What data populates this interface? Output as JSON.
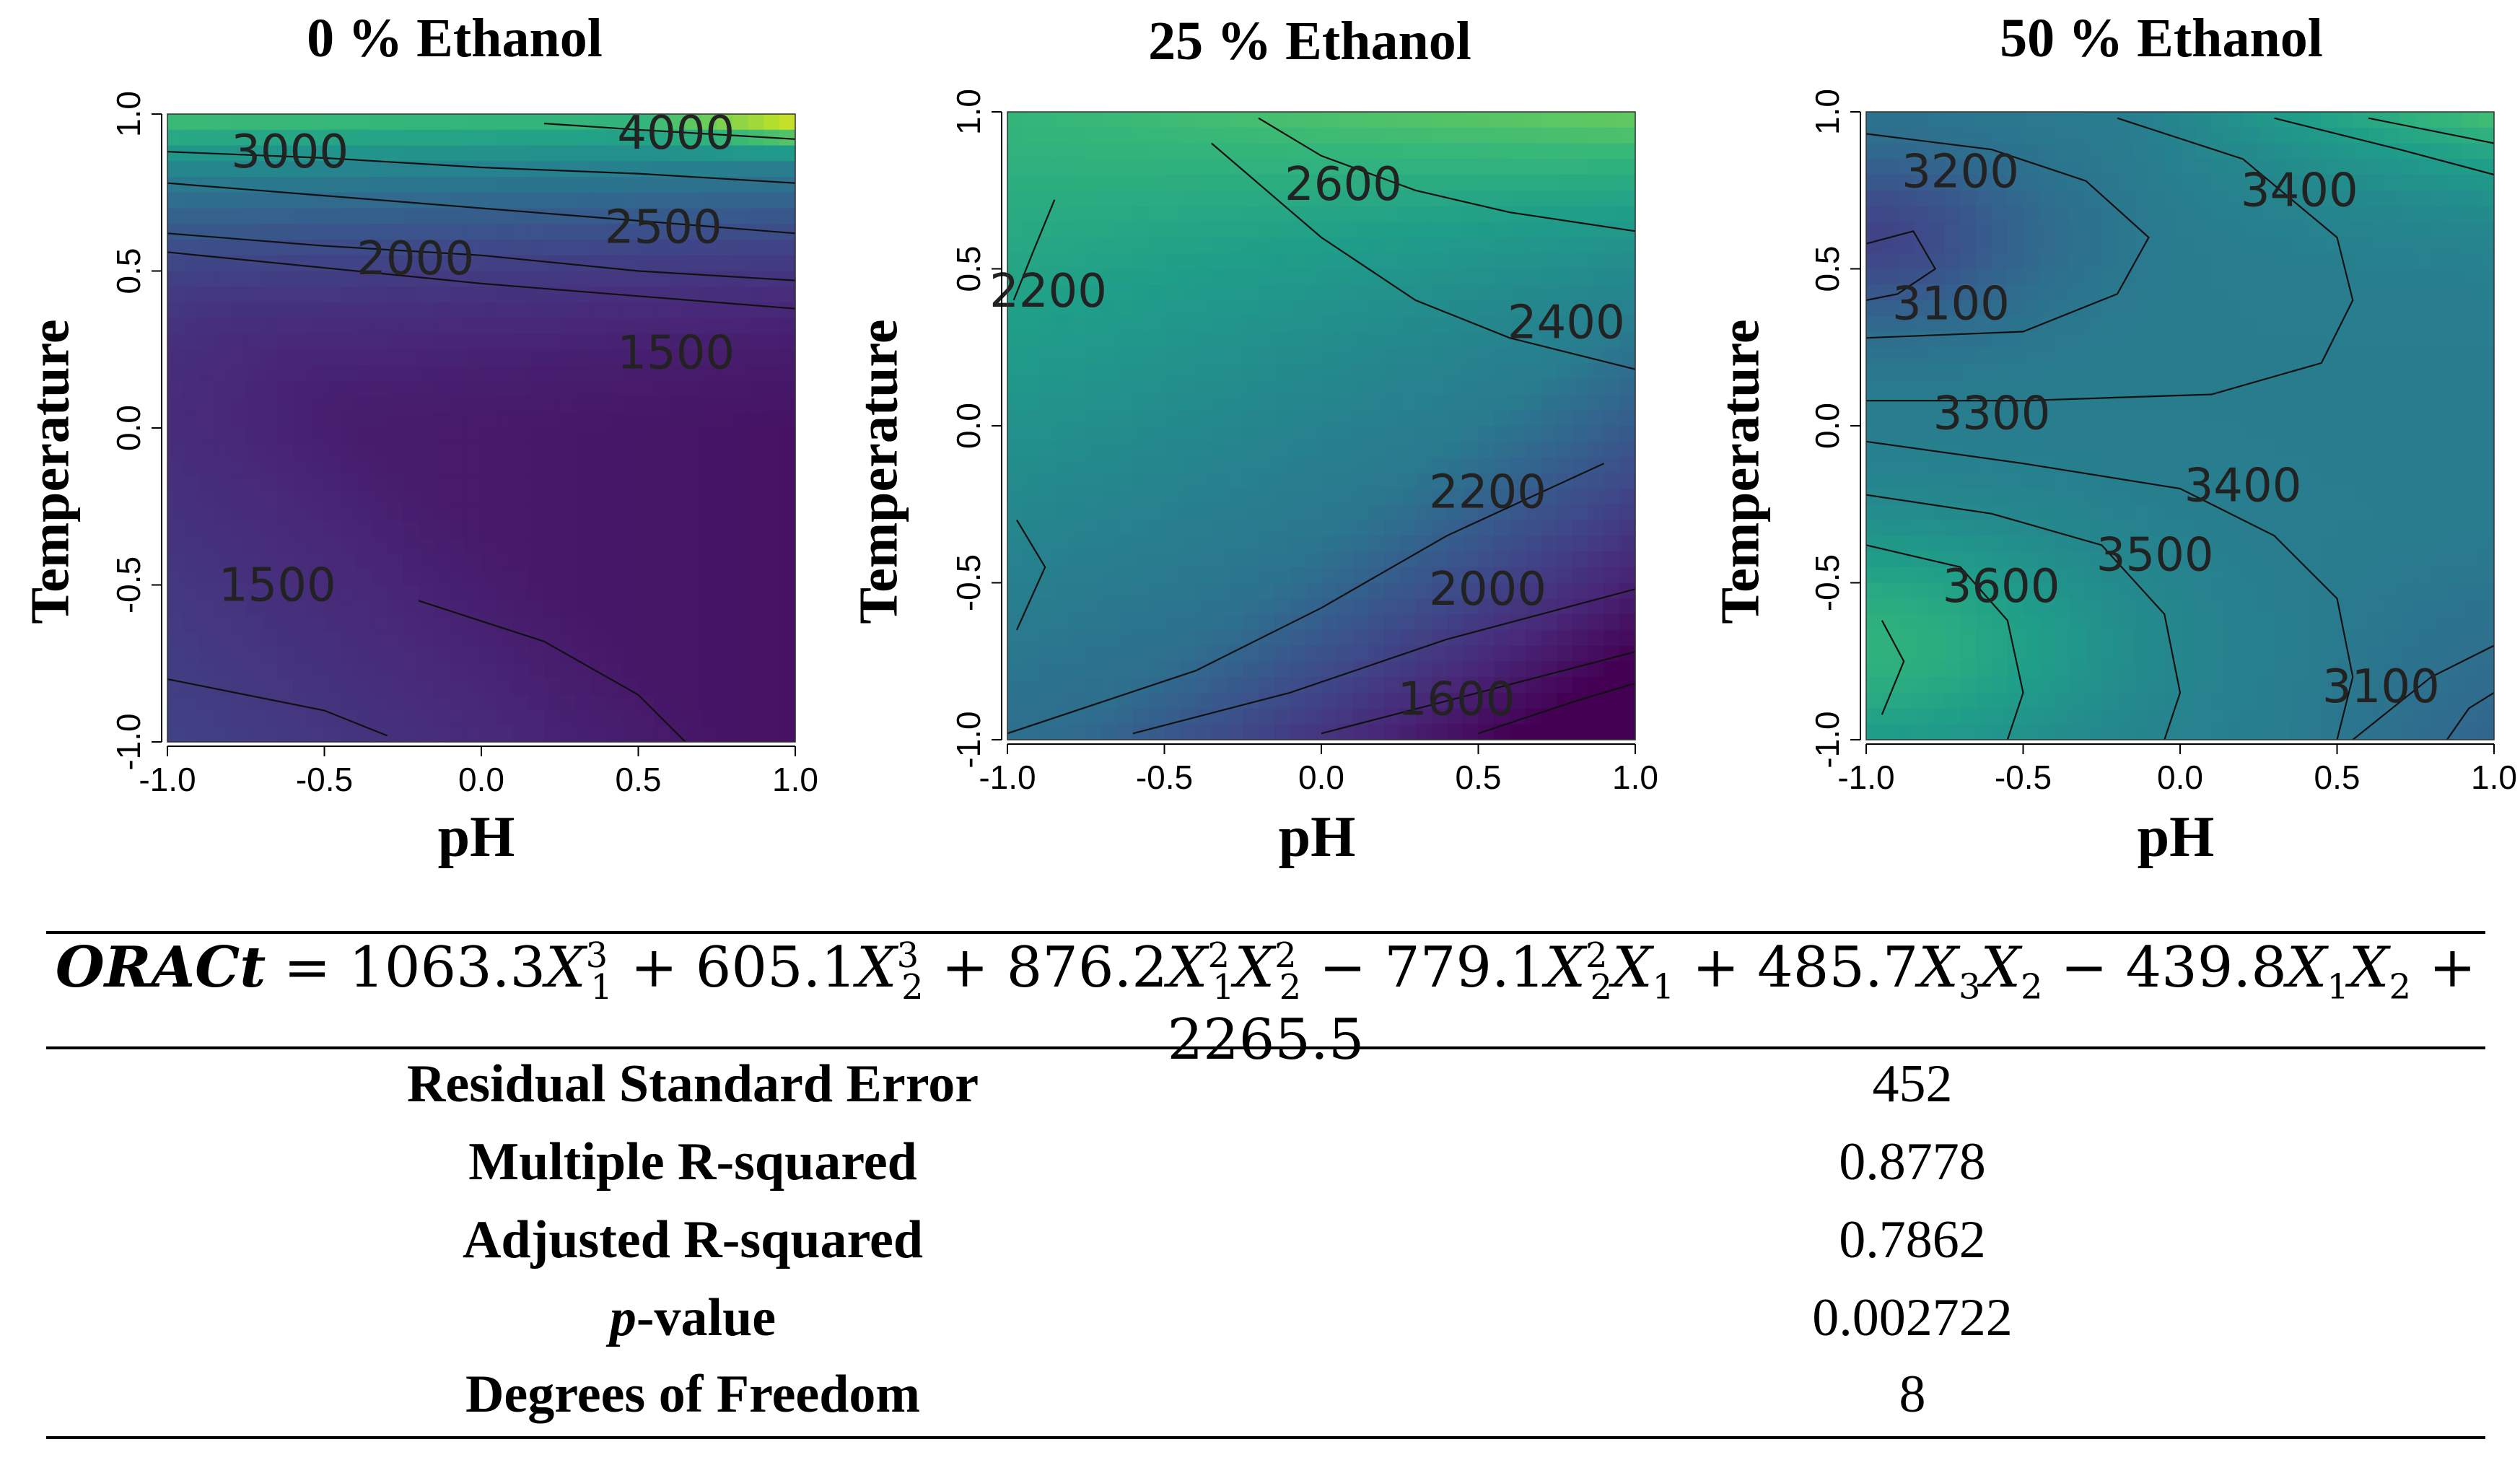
{
  "chart_data": [
    {
      "type": "heatmap",
      "title": "0 % Ethanol",
      "xlabel": "pH",
      "ylabel": "Temperature",
      "xlim": [
        -1.0,
        1.0
      ],
      "ylim": [
        -1.0,
        1.0
      ],
      "x_ticks": [
        "-1.0",
        "-0.5",
        "0.0",
        "0.5",
        "1.0"
      ],
      "y_ticks": [
        "-1.0",
        "-0.5",
        "0.0",
        "0.5",
        "1.0"
      ],
      "contour_labels": [
        {
          "text": "4000",
          "x": 0.62,
          "y": 0.93
        },
        {
          "text": "3000",
          "x": -0.61,
          "y": 0.87
        },
        {
          "text": "2500",
          "x": 0.58,
          "y": 0.63
        },
        {
          "text": "2000",
          "x": -0.21,
          "y": 0.53
        },
        {
          "text": "1500",
          "x": 0.62,
          "y": 0.23
        },
        {
          "text": "1500",
          "x": -0.65,
          "y": -0.51
        }
      ],
      "contour_lines": [
        [
          [
            -1.0,
            0.56
          ],
          [
            -0.5,
            0.51
          ],
          [
            0.0,
            0.46
          ],
          [
            0.5,
            0.42
          ],
          [
            1.0,
            0.38
          ]
        ],
        [
          [
            -1.0,
            0.62
          ],
          [
            -0.5,
            0.58
          ],
          [
            0.0,
            0.55
          ],
          [
            0.5,
            0.5
          ],
          [
            1.0,
            0.47
          ]
        ],
        [
          [
            -1.0,
            0.78
          ],
          [
            -0.5,
            0.74
          ],
          [
            0.0,
            0.7
          ],
          [
            0.5,
            0.66
          ],
          [
            1.0,
            0.62
          ]
        ],
        [
          [
            -1.0,
            0.88
          ],
          [
            -0.5,
            0.86
          ],
          [
            0.0,
            0.83
          ],
          [
            0.5,
            0.81
          ],
          [
            1.0,
            0.78
          ]
        ],
        [
          [
            0.2,
            0.97
          ],
          [
            0.5,
            0.95
          ],
          [
            1.0,
            0.92
          ]
        ],
        [
          [
            -1.0,
            -0.8
          ],
          [
            -0.5,
            -0.9
          ],
          [
            -0.3,
            -0.98
          ]
        ],
        [
          [
            -0.2,
            -0.55
          ],
          [
            0.2,
            -0.68
          ],
          [
            0.5,
            -0.85
          ],
          [
            0.65,
            -1.0
          ]
        ]
      ]
    },
    {
      "type": "heatmap",
      "title": "25 % Ethanol",
      "xlabel": "pH",
      "ylabel": "Temperature",
      "xlim": [
        -1.0,
        1.0
      ],
      "ylim": [
        -1.0,
        1.0
      ],
      "x_ticks": [
        "-1.0",
        "-0.5",
        "0.0",
        "0.5",
        "1.0"
      ],
      "y_ticks": [
        "-1.0",
        "-0.5",
        "0.0",
        "0.5",
        "1.0"
      ],
      "contour_labels": [
        {
          "text": "2600",
          "x": 0.07,
          "y": 0.76
        },
        {
          "text": "2200",
          "x": -0.87,
          "y": 0.42
        },
        {
          "text": "2400",
          "x": 0.78,
          "y": 0.32
        },
        {
          "text": "2200",
          "x": 0.53,
          "y": -0.22
        },
        {
          "text": "2000",
          "x": 0.53,
          "y": -0.53
        },
        {
          "text": "1600",
          "x": 0.43,
          "y": -0.88
        }
      ],
      "contour_lines": [
        [
          [
            -0.2,
            0.98
          ],
          [
            0.0,
            0.86
          ],
          [
            0.3,
            0.75
          ],
          [
            0.6,
            0.68
          ],
          [
            1.0,
            0.62
          ]
        ],
        [
          [
            -0.85,
            0.72
          ],
          [
            -0.92,
            0.55
          ],
          [
            -0.98,
            0.4
          ]
        ],
        [
          [
            -0.35,
            0.9
          ],
          [
            0.0,
            0.6
          ],
          [
            0.3,
            0.4
          ],
          [
            0.6,
            0.28
          ],
          [
            1.0,
            0.18
          ]
        ],
        [
          [
            -0.97,
            -0.3
          ],
          [
            -0.88,
            -0.45
          ],
          [
            -0.97,
            -0.65
          ]
        ],
        [
          [
            -1.0,
            -0.98
          ],
          [
            -0.4,
            -0.78
          ],
          [
            0.0,
            -0.58
          ],
          [
            0.4,
            -0.35
          ],
          [
            0.9,
            -0.12
          ]
        ],
        [
          [
            -0.6,
            -0.98
          ],
          [
            -0.1,
            -0.85
          ],
          [
            0.4,
            -0.68
          ],
          [
            1.0,
            -0.52
          ]
        ],
        [
          [
            0.0,
            -0.98
          ],
          [
            0.5,
            -0.85
          ],
          [
            1.0,
            -0.72
          ]
        ],
        [
          [
            0.5,
            -0.98
          ],
          [
            0.8,
            -0.88
          ],
          [
            1.0,
            -0.82
          ]
        ]
      ]
    },
    {
      "type": "heatmap",
      "title": "50 % Ethanol",
      "xlabel": "pH",
      "ylabel": "Temperature",
      "xlim": [
        -1.0,
        1.0
      ],
      "ylim": [
        -1.0,
        1.0
      ],
      "x_ticks": [
        "-1.0",
        "-0.5",
        "0.0",
        "0.5",
        "1.0"
      ],
      "y_ticks": [
        "-1.0",
        "-0.5",
        "0.0",
        "0.5",
        "1.0"
      ],
      "contour_labels": [
        {
          "text": "3200",
          "x": -0.7,
          "y": 0.8
        },
        {
          "text": "3400",
          "x": 0.38,
          "y": 0.74
        },
        {
          "text": "3100",
          "x": -0.73,
          "y": 0.38
        },
        {
          "text": "3300",
          "x": -0.6,
          "y": 0.03
        },
        {
          "text": "3400",
          "x": 0.2,
          "y": -0.2
        },
        {
          "text": "3500",
          "x": -0.08,
          "y": -0.42
        },
        {
          "text": "3600",
          "x": -0.57,
          "y": -0.52
        },
        {
          "text": "3100",
          "x": 0.64,
          "y": -0.84
        }
      ],
      "contour_lines": [
        [
          [
            -1.0,
            0.93
          ],
          [
            -0.6,
            0.88
          ],
          [
            -0.3,
            0.78
          ],
          [
            -0.1,
            0.6
          ],
          [
            -0.2,
            0.42
          ],
          [
            -0.5,
            0.3
          ],
          [
            -1.0,
            0.28
          ]
        ],
        [
          [
            -1.0,
            0.58
          ],
          [
            -0.85,
            0.62
          ],
          [
            -0.78,
            0.5
          ],
          [
            -0.9,
            0.42
          ],
          [
            -1.0,
            0.4
          ]
        ],
        [
          [
            -0.2,
            0.98
          ],
          [
            0.2,
            0.85
          ],
          [
            0.5,
            0.6
          ],
          [
            0.55,
            0.4
          ],
          [
            0.45,
            0.2
          ],
          [
            0.1,
            0.1
          ],
          [
            -0.5,
            0.08
          ],
          [
            -1.0,
            0.08
          ]
        ],
        [
          [
            0.3,
            0.98
          ],
          [
            0.7,
            0.88
          ],
          [
            1.0,
            0.8
          ]
        ],
        [
          [
            0.6,
            0.98
          ],
          [
            0.85,
            0.93
          ],
          [
            1.0,
            0.9
          ]
        ],
        [
          [
            -1.0,
            -0.05
          ],
          [
            -0.5,
            -0.12
          ],
          [
            0.0,
            -0.2
          ],
          [
            0.3,
            -0.35
          ],
          [
            0.5,
            -0.55
          ],
          [
            0.55,
            -0.8
          ],
          [
            0.5,
            -1.0
          ]
        ],
        [
          [
            -1.0,
            -0.22
          ],
          [
            -0.6,
            -0.28
          ],
          [
            -0.25,
            -0.38
          ],
          [
            -0.05,
            -0.6
          ],
          [
            0.0,
            -0.85
          ],
          [
            -0.05,
            -1.0
          ]
        ],
        [
          [
            -1.0,
            -0.38
          ],
          [
            -0.7,
            -0.45
          ],
          [
            -0.55,
            -0.62
          ],
          [
            -0.5,
            -0.85
          ],
          [
            -0.55,
            -1.0
          ]
        ],
        [
          [
            -0.95,
            -0.62
          ],
          [
            -0.88,
            -0.75
          ],
          [
            -0.95,
            -0.92
          ]
        ],
        [
          [
            0.55,
            -1.0
          ],
          [
            0.8,
            -0.8
          ],
          [
            1.0,
            -0.7
          ]
        ],
        [
          [
            0.85,
            -1.0
          ],
          [
            0.92,
            -0.9
          ],
          [
            1.0,
            -0.85
          ]
        ]
      ]
    }
  ],
  "equation": {
    "lhs": "ORACt",
    "equals": "=",
    "terms": [
      {
        "coef": "1063.3",
        "sign": ""
      },
      {
        "coef": "605.1",
        "sign": "+"
      },
      {
        "coef": "876.2",
        "sign": "+"
      },
      {
        "coef": "779.1",
        "sign": "−"
      },
      {
        "coef": "485.7",
        "sign": "+"
      },
      {
        "coef": "439.8",
        "sign": "−"
      },
      {
        "coef": "2265.5",
        "sign": "+"
      }
    ],
    "variable": "X",
    "idx": [
      "1",
      "2",
      "3"
    ],
    "powers": [
      "2",
      "3"
    ]
  },
  "stats": [
    {
      "label": "Residual Standard Error",
      "value": "452"
    },
    {
      "label": "Multiple R-squared",
      "value": "0.8778"
    },
    {
      "label": "Adjusted R-squared",
      "value": "0.7862"
    },
    {
      "label_italic": "p",
      "label_rest": "-value",
      "value": "0.002722"
    },
    {
      "label": "Degrees of Freedom",
      "value": "8"
    }
  ]
}
